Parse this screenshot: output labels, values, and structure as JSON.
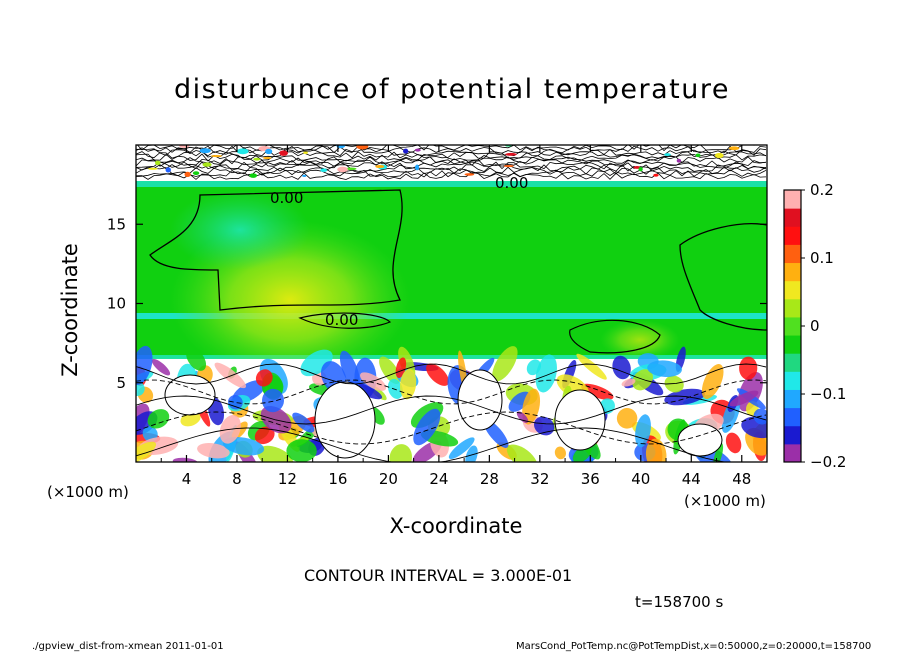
{
  "title": "disturbunce of potential temperature",
  "chart_data": {
    "type": "heatmap",
    "title": "disturbunce of potential temperature",
    "xlabel": "X-coordinate",
    "ylabel": "Z-coordinate",
    "x_unit": "(×1000 m)",
    "xlim": [
      0,
      50
    ],
    "ylim": [
      0,
      20
    ],
    "x_ticks": [
      4,
      8,
      12,
      16,
      20,
      24,
      28,
      32,
      36,
      40,
      44,
      48
    ],
    "y_ticks": [
      5,
      10,
      15
    ],
    "colorbar": {
      "range": [
        -0.2,
        0.2
      ],
      "tick_values": [
        0.2,
        0.1,
        0,
        -0.1,
        -0.2
      ],
      "tick_labels": [
        "0.2",
        "0.1",
        "0",
        "−0.1",
        "−0.2"
      ],
      "colors": [
        "#9b2fa8",
        "#1a1ad0",
        "#2060ff",
        "#20a8ff",
        "#20e8e8",
        "#20d880",
        "#10d010",
        "#50e020",
        "#a8e818",
        "#f0e820",
        "#ffb010",
        "#ff6010",
        "#ff1010",
        "#e01020",
        "#ffb0b0"
      ]
    },
    "contour_labels": [
      "0.00",
      "0.00",
      "0.00"
    ],
    "bands": [
      {
        "z_range": [
          18,
          20
        ],
        "description": "noisy"
      },
      {
        "z_range": [
          6.5,
          18
        ],
        "value": 0.0
      },
      {
        "z_range": [
          0,
          6.5
        ],
        "description": "turbulent mix"
      }
    ]
  },
  "contour_note": "CONTOUR INTERVAL = 3.000E-01",
  "time_label": "t=158700 s",
  "footer_left": "./gpview_dist-from-xmean  2011-01-01",
  "footer_right": "MarsCond_PotTemp.nc@PotTempDist,x=0:50000,z=0:20000,t=158700",
  "colors": {
    "background": "#ffffff",
    "zero": "#10d010",
    "frame": "#000000"
  }
}
